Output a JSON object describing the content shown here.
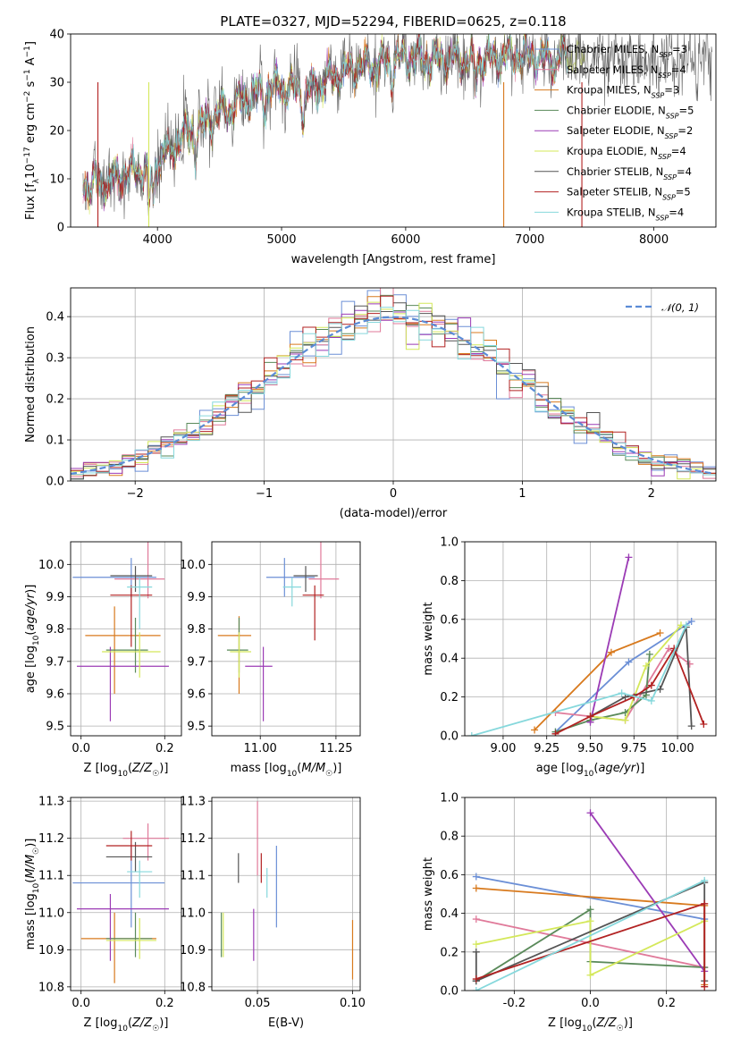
{
  "figure": {
    "title": "PLATE=0327, MJD=52294, FIBERID=0625, z=0.118"
  },
  "colors": {
    "chabrier_miles": "#6b8fd6",
    "salpeter_miles": "#e07a9a",
    "kroupa_miles": "#d87a1e",
    "chabrier_elodie": "#5a8a5a",
    "salpeter_elodie": "#9b3bb5",
    "kroupa_elodie": "#d4e85a",
    "chabrier_stelib": "#555555",
    "salpeter_stelib": "#b22222",
    "kroupa_stelib": "#86d8dc",
    "normal_curve": "#5b8bd6"
  },
  "models": [
    {
      "name": "Chabrier MILES",
      "nssp": "3",
      "color": "#6b8fd6"
    },
    {
      "name": "Salpeter MILES",
      "nssp": "4",
      "color": "#e07a9a"
    },
    {
      "name": "Kroupa MILES",
      "nssp": "3",
      "color": "#d87a1e"
    },
    {
      "name": "Chabrier ELODIE",
      "nssp": "5",
      "color": "#5a8a5a"
    },
    {
      "name": "Salpeter ELODIE",
      "nssp": "2",
      "color": "#9b3bb5"
    },
    {
      "name": "Kroupa ELODIE",
      "nssp": "4",
      "color": "#d4e85a"
    },
    {
      "name": "Chabrier STELIB",
      "nssp": "4",
      "color": "#555555"
    },
    {
      "name": "Salpeter STELIB",
      "nssp": "5",
      "color": "#b22222"
    },
    {
      "name": "Kroupa STELIB",
      "nssp": "4",
      "color": "#86d8dc"
    }
  ],
  "chart_data": [
    {
      "id": "spectrum",
      "type": "line",
      "xlabel": "wavelength [Angstrom, rest frame]",
      "ylabel": "Flux [fλ10⁻¹⁷ erg cm⁻² s⁻¹ A⁻¹]",
      "xlim": [
        3300,
        8500
      ],
      "ylim": [
        0,
        40
      ],
      "xticks": [
        4000,
        5000,
        6000,
        7000,
        8000
      ],
      "yticks": [
        0,
        10,
        20,
        30,
        40
      ],
      "grid": false,
      "legend": "right",
      "continuum": [
        [
          3400,
          9
        ],
        [
          3550,
          9
        ],
        [
          3700,
          10.5
        ],
        [
          3850,
          12
        ],
        [
          3950,
          12
        ],
        [
          4050,
          15
        ],
        [
          4200,
          19
        ],
        [
          4300,
          20
        ],
        [
          4400,
          22
        ],
        [
          4600,
          25
        ],
        [
          4800,
          28
        ],
        [
          5000,
          29
        ],
        [
          5200,
          28
        ],
        [
          5400,
          31
        ],
        [
          5600,
          33
        ],
        [
          5800,
          34
        ],
        [
          6000,
          35
        ],
        [
          6200,
          35
        ],
        [
          6400,
          35
        ],
        [
          6550,
          34
        ],
        [
          6700,
          35
        ],
        [
          6900,
          35.5
        ],
        [
          7100,
          35
        ],
        [
          7300,
          35.5
        ],
        [
          7500,
          34.5
        ],
        [
          7700,
          34
        ],
        [
          7900,
          34.5
        ],
        [
          8100,
          34.5
        ],
        [
          8300,
          34.5
        ],
        [
          8470,
          34.5
        ]
      ],
      "dips": [
        [
          3933,
          8
        ],
        [
          3968,
          7
        ],
        [
          4102,
          3
        ],
        [
          4304,
          5
        ],
        [
          4861,
          3
        ],
        [
          5175,
          5
        ],
        [
          5890,
          4
        ],
        [
          6563,
          4
        ],
        [
          7200,
          3
        ]
      ]
    },
    {
      "id": "residuals",
      "type": "histogram",
      "xlabel": "(data-model)/error",
      "ylabel": "Normed distribution",
      "xlim": [
        -2.5,
        2.5
      ],
      "ylim": [
        0,
        0.47
      ],
      "xticks": [
        -2,
        -1,
        0,
        1,
        2
      ],
      "yticks": [
        0.0,
        0.1,
        0.2,
        0.3,
        0.4
      ],
      "grid": true,
      "legend": "top-right",
      "legend_label": "𝒩(0, 1)",
      "bin_width": 0.1
    },
    {
      "id": "age_vs_z",
      "type": "scatter",
      "xlabel": "Z [log10(Z/Z☉)]",
      "ylabel": "age  [log10(age/yr)]",
      "xlim": [
        -0.025,
        0.24
      ],
      "ylim": [
        9.47,
        10.07
      ],
      "xticks": [
        0.0,
        0.2
      ],
      "yticks": [
        9.5,
        9.6,
        9.7,
        9.8,
        9.9,
        10.0
      ],
      "points": [
        {
          "x": 0.12,
          "y": 9.96,
          "xerr": [
            0.14,
            0.06
          ],
          "yerr": [
            0.06,
            0.06
          ],
          "color": "#6b8fd6"
        },
        {
          "x": 0.16,
          "y": 9.955,
          "xerr": [
            0.08,
            0.04
          ],
          "yerr": [
            0.06,
            0.12
          ],
          "color": "#e07a9a"
        },
        {
          "x": 0.08,
          "y": 9.78,
          "xerr": [
            0.07,
            0.11
          ],
          "yerr": [
            0.18,
            0.09
          ],
          "color": "#d87a1e"
        },
        {
          "x": 0.13,
          "y": 9.735,
          "xerr": [
            0.07,
            0.03
          ],
          "yerr": [
            0.07,
            0.1
          ],
          "color": "#5a8a5a"
        },
        {
          "x": 0.07,
          "y": 9.685,
          "xerr": [
            0.08,
            0.14
          ],
          "yerr": [
            0.17,
            0.06
          ],
          "color": "#9b3bb5"
        },
        {
          "x": 0.14,
          "y": 9.73,
          "xerr": [
            0.09,
            0.05
          ],
          "yerr": [
            0.08,
            0.06
          ],
          "color": "#d4e85a"
        },
        {
          "x": 0.13,
          "y": 9.965,
          "xerr": [
            0.06,
            0.04
          ],
          "yerr": [
            0.05,
            0.03
          ],
          "color": "#555555"
        },
        {
          "x": 0.12,
          "y": 9.905,
          "xerr": [
            0.05,
            0.05
          ],
          "yerr": [
            0.16,
            0.03
          ],
          "color": "#b22222"
        },
        {
          "x": 0.14,
          "y": 9.93,
          "xerr": [
            0.03,
            0.03
          ],
          "yerr": [
            0.13,
            0.03
          ],
          "color": "#86d8dc"
        }
      ]
    },
    {
      "id": "age_vs_mass",
      "type": "scatter",
      "xlabel": "mass [log10(M/M☉)]",
      "ylabel": "",
      "xlim": [
        10.84,
        11.33
      ],
      "ylim": [
        9.47,
        10.07
      ],
      "xticks": [
        11.0,
        11.25
      ],
      "yticks": [
        9.5,
        9.6,
        9.7,
        9.8,
        9.9,
        10.0
      ],
      "points": [
        {
          "x": 11.08,
          "y": 9.96,
          "xerr": [
            0.06,
            0.1
          ],
          "yerr": [
            0.06,
            0.06
          ],
          "color": "#6b8fd6"
        },
        {
          "x": 11.2,
          "y": 9.955,
          "xerr": [
            0.04,
            0.06
          ],
          "yerr": [
            0.06,
            0.12
          ],
          "color": "#e07a9a"
        },
        {
          "x": 10.93,
          "y": 9.78,
          "xerr": [
            0.07,
            0.04
          ],
          "yerr": [
            0.18,
            0.06
          ],
          "color": "#d87a1e"
        },
        {
          "x": 10.93,
          "y": 9.735,
          "xerr": [
            0.04,
            0.03
          ],
          "yerr": [
            0.07,
            0.1
          ],
          "color": "#5a8a5a"
        },
        {
          "x": 11.01,
          "y": 9.685,
          "xerr": [
            0.06,
            0.03
          ],
          "yerr": [
            0.17,
            0.06
          ],
          "color": "#9b3bb5"
        },
        {
          "x": 10.93,
          "y": 9.73,
          "xerr": [
            0.03,
            0.04
          ],
          "yerr": [
            0.08,
            0.06
          ],
          "color": "#d4e85a"
        },
        {
          "x": 11.15,
          "y": 9.965,
          "xerr": [
            0.04,
            0.04
          ],
          "yerr": [
            0.05,
            0.03
          ],
          "color": "#555555"
        },
        {
          "x": 11.18,
          "y": 9.905,
          "xerr": [
            0.04,
            0.03
          ],
          "yerr": [
            0.14,
            0.03
          ],
          "color": "#b22222"
        },
        {
          "x": 11.105,
          "y": 9.93,
          "xerr": [
            0.03,
            0.03
          ],
          "yerr": [
            0.06,
            0.03
          ],
          "color": "#86d8dc"
        }
      ]
    },
    {
      "id": "weight_vs_age",
      "type": "line",
      "xlabel": "age  [log10(age/yr)]",
      "ylabel": "mass weight",
      "xlim": [
        8.78,
        10.22
      ],
      "ylim": [
        0,
        1.0
      ],
      "xticks": [
        9.0,
        9.25,
        9.5,
        9.75,
        10.0
      ],
      "yticks": [
        0.0,
        0.2,
        0.4,
        0.6,
        0.8,
        1.0
      ],
      "series": [
        {
          "color": "#6b8fd6",
          "x": [
            9.3,
            9.72,
            10.08
          ],
          "y": [
            0.02,
            0.38,
            0.59
          ]
        },
        {
          "color": "#e07a9a",
          "x": [
            9.3,
            9.7,
            9.95,
            10.07
          ],
          "y": [
            0.12,
            0.08,
            0.45,
            0.37
          ]
        },
        {
          "color": "#d87a1e",
          "x": [
            9.18,
            9.62,
            9.9
          ],
          "y": [
            0.03,
            0.43,
            0.53
          ]
        },
        {
          "color": "#5a8a5a",
          "x": [
            9.3,
            9.5,
            9.7,
            9.82,
            9.84
          ],
          "y": [
            0.02,
            0.08,
            0.12,
            0.21,
            0.42
          ]
        },
        {
          "color": "#9b3bb5",
          "x": [
            9.5,
            9.72
          ],
          "y": [
            0.07,
            0.92
          ]
        },
        {
          "color": "#d4e85a",
          "x": [
            9.5,
            9.7,
            9.82,
            10.02
          ],
          "y": [
            0.1,
            0.08,
            0.36,
            0.57
          ]
        },
        {
          "color": "#555555",
          "x": [
            9.5,
            9.7,
            9.9,
            10.05,
            10.08
          ],
          "y": [
            0.1,
            0.2,
            0.24,
            0.56,
            0.05
          ]
        },
        {
          "color": "#b22222",
          "x": [
            9.3,
            9.5,
            9.75,
            9.85,
            9.98,
            10.15
          ],
          "y": [
            0.01,
            0.1,
            0.2,
            0.26,
            0.45,
            0.06
          ]
        },
        {
          "color": "#86d8dc",
          "x": [
            8.82,
            9.68,
            9.85,
            10.05
          ],
          "y": [
            0.0,
            0.22,
            0.18,
            0.57
          ]
        }
      ]
    },
    {
      "id": "mass_vs_z",
      "type": "scatter",
      "xlabel": "Z [log10(Z/Z☉)]",
      "ylabel": "mass [log10(M/M☉)]",
      "xlim": [
        -0.025,
        0.24
      ],
      "ylim": [
        10.79,
        11.31
      ],
      "xticks": [
        0.0,
        0.2
      ],
      "yticks": [
        10.8,
        10.9,
        11.0,
        11.1,
        11.2,
        11.3
      ],
      "points": [
        {
          "x": 0.12,
          "y": 11.08,
          "xerr": [
            0.14,
            0.08
          ],
          "yerr": [
            0.12,
            0.1
          ],
          "color": "#6b8fd6"
        },
        {
          "x": 0.16,
          "y": 11.2,
          "xerr": [
            0.06,
            0.05
          ],
          "yerr": [
            0.06,
            0.04
          ],
          "color": "#e07a9a"
        },
        {
          "x": 0.08,
          "y": 10.93,
          "xerr": [
            0.08,
            0.1
          ],
          "yerr": [
            0.12,
            0.07
          ],
          "color": "#d87a1e"
        },
        {
          "x": 0.13,
          "y": 10.93,
          "xerr": [
            0.07,
            0.04
          ],
          "yerr": [
            0.05,
            0.07
          ],
          "color": "#5a8a5a"
        },
        {
          "x": 0.07,
          "y": 11.01,
          "xerr": [
            0.08,
            0.14
          ],
          "yerr": [
            0.14,
            0.04
          ],
          "color": "#9b3bb5"
        },
        {
          "x": 0.14,
          "y": 10.925,
          "xerr": [
            0.08,
            0.04
          ],
          "yerr": [
            0.05,
            0.06
          ],
          "color": "#d4e85a"
        },
        {
          "x": 0.13,
          "y": 11.15,
          "xerr": [
            0.07,
            0.04
          ],
          "yerr": [
            0.04,
            0.04
          ],
          "color": "#555555"
        },
        {
          "x": 0.12,
          "y": 11.18,
          "xerr": [
            0.06,
            0.05
          ],
          "yerr": [
            0.04,
            0.04
          ],
          "color": "#b22222"
        },
        {
          "x": 0.14,
          "y": 11.11,
          "xerr": [
            0.03,
            0.03
          ],
          "yerr": [
            0.07,
            0.03
          ],
          "color": "#86d8dc"
        }
      ]
    },
    {
      "id": "mass_vs_ebv",
      "type": "scatter",
      "xlabel": "E(B-V)",
      "ylabel": "",
      "xlim": [
        0.026,
        0.104
      ],
      "ylim": [
        10.79,
        11.31
      ],
      "xticks": [
        0.05,
        0.1
      ],
      "yticks": [
        10.8,
        10.9,
        11.0,
        11.1,
        11.2,
        11.3
      ],
      "points": [
        {
          "x": 0.06,
          "y": 11.07,
          "xerr": [
            0,
            0
          ],
          "yerr": [
            0.11,
            0.11
          ],
          "color": "#6b8fd6"
        },
        {
          "x": 0.05,
          "y": 11.2,
          "xerr": [
            0,
            0
          ],
          "yerr": [
            0.1,
            0.1
          ],
          "color": "#e07a9a"
        },
        {
          "x": 0.1,
          "y": 10.9,
          "xerr": [
            0,
            0
          ],
          "yerr": [
            0.08,
            0.08
          ],
          "color": "#d87a1e"
        },
        {
          "x": 0.031,
          "y": 10.94,
          "xerr": [
            0,
            0
          ],
          "yerr": [
            0.06,
            0.06
          ],
          "color": "#5a8a5a"
        },
        {
          "x": 0.048,
          "y": 10.94,
          "xerr": [
            0,
            0
          ],
          "yerr": [
            0.07,
            0.07
          ],
          "color": "#9b3bb5"
        },
        {
          "x": 0.032,
          "y": 10.94,
          "xerr": [
            0,
            0
          ],
          "yerr": [
            0.06,
            0.06
          ],
          "color": "#d4e85a"
        },
        {
          "x": 0.04,
          "y": 11.12,
          "xerr": [
            0,
            0
          ],
          "yerr": [
            0.04,
            0.04
          ],
          "color": "#555555"
        },
        {
          "x": 0.052,
          "y": 11.12,
          "xerr": [
            0,
            0
          ],
          "yerr": [
            0.04,
            0.04
          ],
          "color": "#b22222"
        },
        {
          "x": 0.055,
          "y": 11.08,
          "xerr": [
            0,
            0
          ],
          "yerr": [
            0.04,
            0.04
          ],
          "color": "#86d8dc"
        }
      ]
    },
    {
      "id": "weight_vs_z",
      "type": "line",
      "xlabel": "Z [log10(Z/Z☉)]",
      "ylabel": "mass weight",
      "xlim": [
        -0.33,
        0.33
      ],
      "ylim": [
        0,
        1.0
      ],
      "xticks": [
        -0.2,
        0.0,
        0.2
      ],
      "yticks": [
        0.0,
        0.2,
        0.4,
        0.6,
        0.8,
        1.0
      ],
      "series": [
        {
          "color": "#6b8fd6",
          "x": [
            -0.3,
            0.3
          ],
          "y": [
            0.59,
            0.37
          ]
        },
        {
          "color": "#e07a9a",
          "x": [
            -0.3,
            0.3
          ],
          "y": [
            0.37,
            0.12
          ]
        },
        {
          "color": "#d87a1e",
          "x": [
            -0.3,
            0.3,
            0.3
          ],
          "y": [
            0.53,
            0.44,
            0.03
          ]
        },
        {
          "color": "#5a8a5a",
          "x": [
            -0.3,
            0.0,
            0.0,
            0.3
          ],
          "y": [
            0.05,
            0.42,
            0.15,
            0.12
          ]
        },
        {
          "color": "#9b3bb5",
          "x": [
            0.0,
            0.3
          ],
          "y": [
            0.92,
            0.1
          ]
        },
        {
          "color": "#d4e85a",
          "x": [
            -0.3,
            0.0,
            0.0,
            0.3
          ],
          "y": [
            0.24,
            0.36,
            0.08,
            0.36
          ]
        },
        {
          "color": "#555555",
          "x": [
            -0.3,
            -0.3,
            0.3,
            0.3
          ],
          "y": [
            0.2,
            0.05,
            0.56,
            0.05
          ]
        },
        {
          "color": "#b22222",
          "x": [
            -0.3,
            0.3,
            0.3
          ],
          "y": [
            0.06,
            0.45,
            0.02
          ]
        },
        {
          "color": "#86d8dc",
          "x": [
            -0.3,
            0.3
          ],
          "y": [
            0.0,
            0.57
          ]
        }
      ]
    }
  ]
}
